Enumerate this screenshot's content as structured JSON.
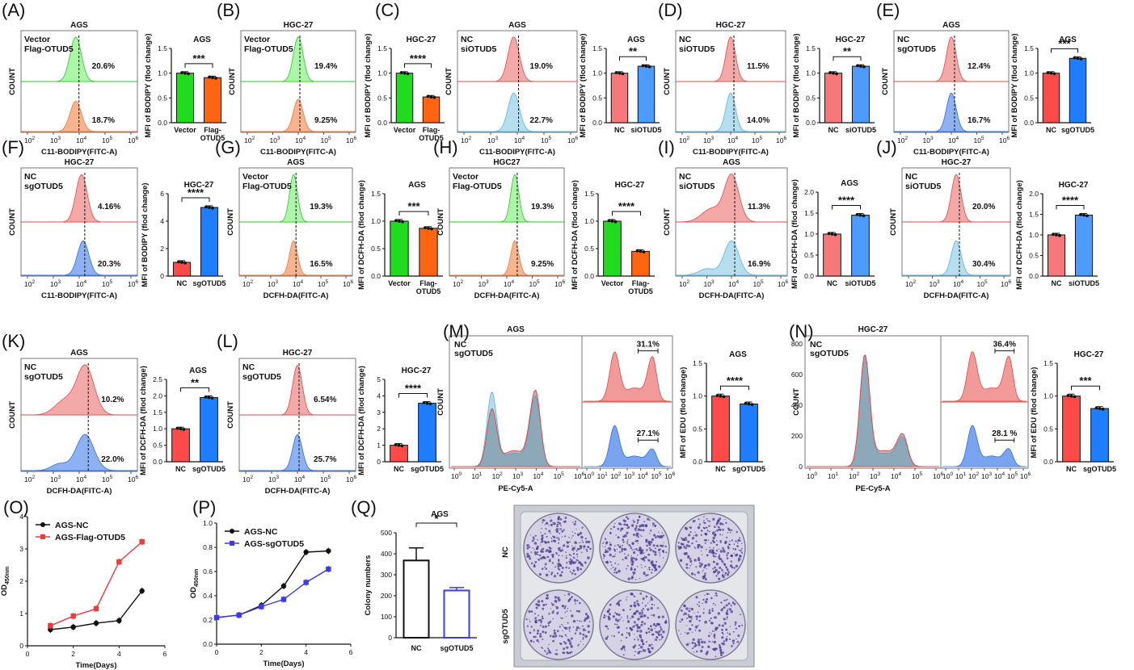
{
  "colors": {
    "green_fill": "#9ef59a",
    "green_line": "#2fc62a",
    "green_text": "#27c427",
    "orange_fill": "#f7a77b",
    "orange_line": "#ef7a3c",
    "orange_text": "#ee7a31",
    "red_fill": "#f29a9a",
    "red_line": "#e24a4a",
    "red_text": "#e64545",
    "lightblue_fill": "#a9d8ec",
    "lightblue_line": "#58b6e0",
    "lightblue_text": "#3da6dd",
    "blue_fill": "#7aa3f0",
    "blue_line": "#2e6fe8",
    "blue_text": "#2f7ae5",
    "bar_green": "#1fdc1f",
    "bar_orange": "#ff6510",
    "bar_salmon": "#f7787a",
    "bar_skyblue": "#4d9bff",
    "bar_red": "#ff4a4a",
    "bar_blue": "#1f7dff"
  },
  "chart_data": [
    {
      "id": "A-hist",
      "panel": "(A)",
      "type": "area",
      "title": "AGS",
      "xlabel": "C11-BODIPY(FITC-A)",
      "ylabel": "COUNT",
      "series": [
        {
          "name": "Vector",
          "percent": "20.6%",
          "color": "green"
        },
        {
          "name": "Flag-OTUD5",
          "percent": "18.7%",
          "color": "orange"
        }
      ]
    },
    {
      "id": "A-bar",
      "type": "bar",
      "title": "AGS",
      "ylabel": "MFI of BODIPY (flod change)",
      "ylim": [
        0,
        1.5
      ],
      "yticks": [
        "0.0",
        "0.5",
        "1.0",
        "1.5"
      ],
      "categories": [
        "Vector",
        "Flag-OTUD5"
      ],
      "values": [
        1.0,
        0.91
      ],
      "colors": [
        "bar_green",
        "bar_orange"
      ],
      "significance": "***"
    },
    {
      "id": "B-hist",
      "panel": "(B)",
      "type": "area",
      "title": "HGC-27",
      "xlabel": "C11-BODIPY(FITC-A)",
      "ylabel": "COUNT",
      "series": [
        {
          "name": "Vector",
          "percent": "19.4%",
          "color": "green"
        },
        {
          "name": "Flag-OTUD5",
          "percent": "9.25%",
          "color": "orange"
        }
      ]
    },
    {
      "id": "B-bar",
      "panel": "(C)",
      "type": "bar",
      "title": "HGC-27",
      "ylabel": "MFI of BODIPY (flod change)",
      "ylim": [
        0,
        1.5
      ],
      "yticks": [
        "0.0",
        "0.5",
        "1.0",
        "1.5"
      ],
      "categories": [
        "Vector",
        "Flag-OTUD5"
      ],
      "values": [
        1.0,
        0.52
      ],
      "colors": [
        "bar_green",
        "bar_orange"
      ],
      "significance": "****"
    },
    {
      "id": "C-hist",
      "type": "area",
      "title": "AGS",
      "xlabel": "C11-BODIPY(FITC-A)",
      "ylabel": "COUNT",
      "series": [
        {
          "name": "NC",
          "percent": "19.0%",
          "color": "red"
        },
        {
          "name": "siOTUD5",
          "percent": "22.7%",
          "color": "lightblue"
        }
      ]
    },
    {
      "id": "C-bar",
      "type": "bar",
      "title": "AGS",
      "ylabel": "MFI of BODIPY (flod change)",
      "ylim": [
        0,
        1.5
      ],
      "yticks": [
        "0.0",
        "0.5",
        "1.0",
        "1.5"
      ],
      "categories": [
        "NC",
        "siOTUD5"
      ],
      "values": [
        1.0,
        1.14
      ],
      "colors": [
        "bar_salmon",
        "bar_skyblue"
      ],
      "significance": "**"
    },
    {
      "id": "D-hist",
      "panel": "(D)",
      "type": "area",
      "title": "HGC-27",
      "xlabel": "C11-BODIPY(FITC-A)",
      "ylabel": "COUNT",
      "series": [
        {
          "name": "NC",
          "percent": "11.5%",
          "color": "red"
        },
        {
          "name": "siOTUD5",
          "percent": "14.0%",
          "color": "lightblue"
        }
      ]
    },
    {
      "id": "D-bar",
      "type": "bar",
      "title": "HGC-27",
      "ylabel": "MFI of BODIPY (flod change)",
      "ylim": [
        0,
        1.5
      ],
      "yticks": [
        "0.0",
        "0.5",
        "1.0",
        "1.5"
      ],
      "categories": [
        "NC",
        "siOTUD5"
      ],
      "values": [
        1.0,
        1.14
      ],
      "colors": [
        "bar_salmon",
        "bar_skyblue"
      ],
      "significance": "**"
    },
    {
      "id": "E-hist",
      "panel": "(E)",
      "type": "area",
      "title": "AGS",
      "xlabel": "C11-BODIPY(FITC-A)",
      "ylabel": "COUNT",
      "series": [
        {
          "name": "NC",
          "percent": "12.4%",
          "color": "red"
        },
        {
          "name": "sgOTUD5",
          "percent": "16.7%",
          "color": "blue"
        }
      ]
    },
    {
      "id": "E-bar",
      "type": "bar",
      "title": "AGS",
      "ylabel": "MFI of BODIPY (flod change)",
      "ylim": [
        0,
        1.5
      ],
      "yticks": [
        "0.0",
        "0.5",
        "1.0",
        "1.5"
      ],
      "categories": [
        "NC",
        "sgOTUD5"
      ],
      "values": [
        1.0,
        1.3
      ],
      "colors": [
        "bar_red",
        "bar_blue"
      ],
      "significance": "***"
    },
    {
      "id": "F-hist",
      "panel": "(F)",
      "type": "area",
      "title": "HGC-27",
      "xlabel": "C11-BODIPY(FITC-A)",
      "ylabel": "COUNT",
      "series": [
        {
          "name": "NC",
          "percent": "4.16%",
          "color": "red"
        },
        {
          "name": "sgOTUD5",
          "percent": "20.3%",
          "color": "blue"
        }
      ]
    },
    {
      "id": "F-bar",
      "type": "bar",
      "title": "HGC-27",
      "ylabel": "MFI of BODIPY (flod change)",
      "ylim": [
        0,
        6
      ],
      "yticks": [
        "0",
        "2",
        "4",
        "6"
      ],
      "categories": [
        "NC",
        "sgOTUD5"
      ],
      "values": [
        1.0,
        5.0
      ],
      "colors": [
        "bar_red",
        "bar_blue"
      ],
      "significance": "****"
    },
    {
      "id": "G-hist",
      "panel": "(G)",
      "type": "area",
      "title": "AGS",
      "xlabel": "DCFH-DA(FITC-A)",
      "ylabel": "COUNT",
      "series": [
        {
          "name": "Vector",
          "percent": "19.3%",
          "color": "green"
        },
        {
          "name": "Flag-OTUD5",
          "percent": "16.5%",
          "color": "orange"
        }
      ]
    },
    {
      "id": "G-bar",
      "type": "bar",
      "title": "AGS",
      "ylabel": "MFI of DCFH-DA (flod change)",
      "ylim": [
        0,
        1.5
      ],
      "yticks": [
        "0.0",
        "0.5",
        "1.0",
        "1.5"
      ],
      "categories": [
        "Vector",
        "Flag-OTUD5"
      ],
      "values": [
        1.0,
        0.87
      ],
      "colors": [
        "bar_green",
        "bar_orange"
      ],
      "significance": "***"
    },
    {
      "id": "H-hist",
      "panel": "(H)",
      "type": "area",
      "title": "HGC27",
      "xlabel": "DCFH-DA(FITC-A)",
      "ylabel": "COUNT",
      "series": [
        {
          "name": "Vector",
          "percent": "19.3%",
          "color": "green"
        },
        {
          "name": "Flag-OTUD5",
          "percent": "9.25%",
          "color": "orange"
        }
      ]
    },
    {
      "id": "H-bar",
      "type": "bar",
      "title": "HGC-27",
      "ylabel": "MFI of DCFH-DA (flod change)",
      "ylim": [
        0,
        1.5
      ],
      "yticks": [
        "0.0",
        "0.5",
        "1.0",
        "1.5"
      ],
      "categories": [
        "Vector",
        "Flag-OTUD5"
      ],
      "values": [
        1.0,
        0.45
      ],
      "colors": [
        "bar_green",
        "bar_orange"
      ],
      "significance": "****"
    },
    {
      "id": "I-hist",
      "panel": "(I)",
      "type": "area",
      "title": "AGS",
      "xlabel": "DCFH-DA(FITC-A)",
      "ylabel": "COUNT",
      "series": [
        {
          "name": "NC",
          "percent": "11.3%",
          "color": "red"
        },
        {
          "name": "siOTUD5",
          "percent": "16.9%",
          "color": "lightblue"
        }
      ]
    },
    {
      "id": "I-bar",
      "type": "bar",
      "title": "AGS",
      "ylabel": "MFI of DCFH-DA (flod change)",
      "ylim": [
        0,
        2.0
      ],
      "yticks": [
        "0.0",
        "0.5",
        "1.0",
        "1.5",
        "2.0"
      ],
      "categories": [
        "NC",
        "siOTUD5"
      ],
      "values": [
        1.0,
        1.45
      ],
      "colors": [
        "bar_salmon",
        "bar_skyblue"
      ],
      "significance": "****"
    },
    {
      "id": "J-hist",
      "panel": "(J)",
      "type": "area",
      "title": "HGC-27",
      "xlabel": "DCFH-DA(FITC-A)",
      "ylabel": "COUNT",
      "series": [
        {
          "name": "NC",
          "percent": "20.0%",
          "color": "red"
        },
        {
          "name": "siOTUD5",
          "percent": "30.4%",
          "color": "lightblue"
        }
      ]
    },
    {
      "id": "J-bar",
      "type": "bar",
      "title": "HGC-27",
      "ylabel": "MFI of DCFH-DA (flod change)",
      "ylim": [
        0,
        2.0
      ],
      "yticks": [
        "0.0",
        "0.5",
        "1.0",
        "1.5",
        "2.0"
      ],
      "categories": [
        "NC",
        "siOTUD5"
      ],
      "values": [
        1.0,
        1.48
      ],
      "colors": [
        "bar_salmon",
        "bar_skyblue"
      ],
      "significance": "****"
    },
    {
      "id": "K-hist",
      "panel": "(K)",
      "type": "area",
      "title": "AGS",
      "xlabel": "DCFH-DA(FITC-A)",
      "ylabel": "COUNT",
      "series": [
        {
          "name": "NC",
          "percent": "10.2%",
          "color": "red"
        },
        {
          "name": "sgOTUD5",
          "percent": "22.0%",
          "color": "blue"
        }
      ]
    },
    {
      "id": "K-bar",
      "type": "bar",
      "title": "AGS",
      "ylabel": "MFI of DCFH-DA (flod change)",
      "ylim": [
        0,
        2.5
      ],
      "yticks": [
        "0.0",
        "0.5",
        "1.0",
        "1.5",
        "2.0",
        "2.5"
      ],
      "categories": [
        "NC",
        "sgOTUD5"
      ],
      "values": [
        1.0,
        1.95
      ],
      "colors": [
        "bar_red",
        "bar_blue"
      ],
      "significance": "**"
    },
    {
      "id": "L-hist",
      "panel": "(L)",
      "type": "area",
      "title": "HGC-27",
      "xlabel": "DCFH-DA(FITC-A)",
      "ylabel": "COUNT",
      "series": [
        {
          "name": "NC",
          "percent": "6.54%",
          "color": "red"
        },
        {
          "name": "sgOTUD5",
          "percent": "25.7%",
          "color": "blue"
        }
      ]
    },
    {
      "id": "L-bar",
      "type": "bar",
      "title": "HGC-27",
      "ylabel": "MFI of DCFH-DA (flod change)",
      "ylim": [
        0,
        5
      ],
      "yticks": [
        "0",
        "1",
        "2",
        "3",
        "4",
        "5"
      ],
      "categories": [
        "NC",
        "sgOTUD5"
      ],
      "values": [
        1.0,
        3.55
      ],
      "colors": [
        "bar_red",
        "bar_blue"
      ],
      "significance": "****"
    },
    {
      "id": "M-hist",
      "panel": "(M)",
      "type": "area",
      "title": "AGS",
      "xlabel": "PE-Cy5-A",
      "ylabel": "COUNT",
      "series": [
        {
          "name": "NC",
          "color": "red"
        },
        {
          "name": "sgOTUD5",
          "color": "lightblue"
        }
      ],
      "gates": [
        {
          "series": "NC",
          "percent": "31.1%"
        },
        {
          "series": "sgOTUD5",
          "percent": "27.1%"
        }
      ]
    },
    {
      "id": "M-bar",
      "type": "bar",
      "title": "AGS",
      "ylabel": "MFI of EDU (flod change)",
      "ylim": [
        0,
        1.5
      ],
      "yticks": [
        "0.0",
        "0.5",
        "1.0",
        "1.5"
      ],
      "categories": [
        "NC",
        "sgOTUD5"
      ],
      "values": [
        1.0,
        0.88
      ],
      "colors": [
        "bar_red",
        "bar_blue"
      ],
      "significance": "****"
    },
    {
      "id": "N-hist",
      "panel": "(N)",
      "type": "area",
      "title": "HGC-27",
      "xlabel": "PE-Cy5-A",
      "ylabel": "COUNT",
      "yticks": [
        "0",
        "200",
        "400",
        "600",
        "800"
      ],
      "series": [
        {
          "name": "NC",
          "color": "red"
        },
        {
          "name": "sgOTUD5",
          "color": "lightblue"
        }
      ],
      "gates": [
        {
          "series": "NC",
          "percent": "36.4%"
        },
        {
          "series": "sgOTUD5",
          "percent": "28.1 %"
        }
      ]
    },
    {
      "id": "N-bar",
      "type": "bar",
      "title": "HGC-27",
      "ylabel": "MFI of EDU (flod change)",
      "ylim": [
        0,
        1.5
      ],
      "yticks": [
        "0.0",
        "0.5",
        "1.0",
        "1.5"
      ],
      "categories": [
        "NC",
        "sgOTUD5"
      ],
      "values": [
        1.0,
        0.81
      ],
      "colors": [
        "bar_red",
        "bar_blue"
      ],
      "significance": "***"
    },
    {
      "id": "O",
      "panel": "(O)",
      "type": "line",
      "xlabel": "Time(Days)",
      "ylabel": "OD",
      "ylabel_sub": "450nm",
      "xlim": [
        0,
        6
      ],
      "ylim": [
        0,
        4
      ],
      "xticks": [
        "0",
        "2",
        "4",
        "6"
      ],
      "yticks": [
        "0",
        "1",
        "2",
        "3",
        "4"
      ],
      "x": [
        1,
        2,
        3,
        4,
        5
      ],
      "series": [
        {
          "name": "AGS-NC",
          "values": [
            0.5,
            0.58,
            0.7,
            0.78,
            1.7
          ],
          "color": "#111111",
          "marker": "circle"
        },
        {
          "name": "AGS-Flag-OTUD5",
          "values": [
            0.62,
            0.92,
            1.15,
            2.6,
            3.22
          ],
          "color": "#ee3b3b",
          "marker": "square"
        }
      ]
    },
    {
      "id": "P",
      "panel": "(P)",
      "type": "line",
      "xlabel": "Time(Days)",
      "ylabel": "OD",
      "ylabel_sub": "450nm",
      "xlim": [
        0,
        6
      ],
      "ylim": [
        0,
        1.0
      ],
      "xticks": [
        "0",
        "2",
        "4",
        "6"
      ],
      "yticks": [
        "0.0",
        "0.2",
        "0.4",
        "0.6",
        "0.8",
        "1.0"
      ],
      "x": [
        0,
        1,
        2,
        3,
        4,
        5
      ],
      "series": [
        {
          "name": "AGS-NC",
          "values": [
            0.22,
            0.24,
            0.32,
            0.48,
            0.76,
            0.77
          ],
          "color": "#111111",
          "marker": "circle"
        },
        {
          "name": "AGS-sgOTUD5",
          "values": [
            0.22,
            0.24,
            0.31,
            0.37,
            0.51,
            0.62
          ],
          "color": "#3b3bee",
          "marker": "square"
        }
      ]
    },
    {
      "id": "Q",
      "panel": "(Q)",
      "type": "bar",
      "title": "AGS",
      "ylabel": "Colony numbers",
      "ylim": [
        0,
        500
      ],
      "yticks": [
        "0",
        "100",
        "200",
        "300",
        "400",
        "500"
      ],
      "categories": [
        "NC",
        "sgOTUD5"
      ],
      "values": [
        368,
        225
      ],
      "errors": [
        60,
        14
      ],
      "colors": [
        "#111111",
        "#3b3bee"
      ],
      "significance": "*"
    }
  ],
  "plate": {
    "row_labels": [
      "NC",
      "sgOTUD5"
    ]
  }
}
